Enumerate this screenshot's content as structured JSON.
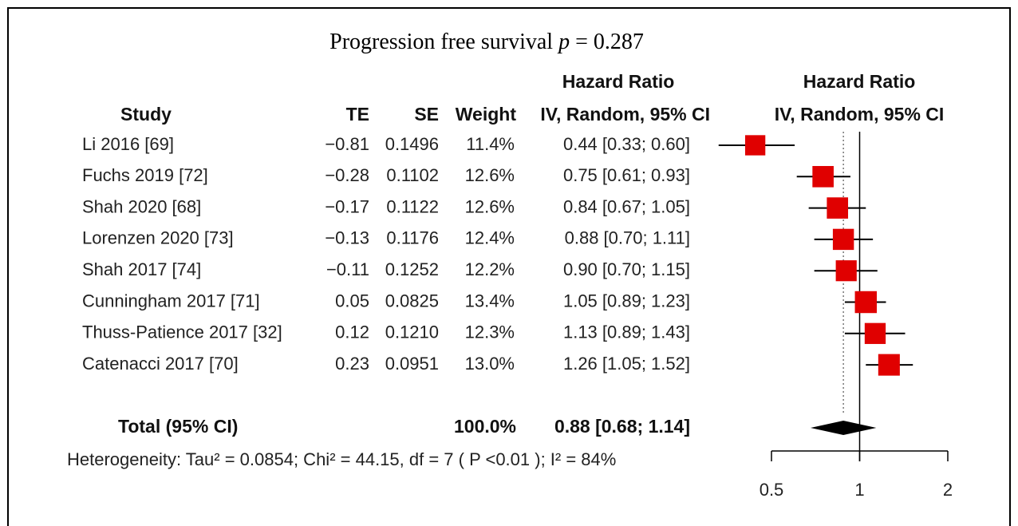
{
  "chart_data": {
    "type": "forest",
    "title": "Progression free survival",
    "title_stat": "p",
    "title_stat_value": "= 0.287",
    "headers": {
      "study": "Study",
      "te": "TE",
      "se": "SE",
      "weight": "Weight",
      "ci_top": "Hazard Ratio",
      "ci_bottom": "IV, Random, 95% CI",
      "plot_top": "Hazard Ratio",
      "plot_bottom": "IV, Random, 95% CI"
    },
    "studies": [
      {
        "name": "Li 2016 [69]",
        "te": "−0.81",
        "se": "0.1496",
        "weight": "11.4%",
        "ci": "0.44 [0.33; 0.60]",
        "w": 11.4,
        "hr": 0.44,
        "lower": 0.33,
        "upper": 0.6
      },
      {
        "name": "Fuchs 2019 [72]",
        "te": "−0.28",
        "se": "0.1102",
        "weight": "12.6%",
        "ci": "0.75 [0.61; 0.93]",
        "w": 12.6,
        "hr": 0.75,
        "lower": 0.61,
        "upper": 0.93
      },
      {
        "name": "Shah 2020 [68]",
        "te": "−0.17",
        "se": "0.1122",
        "weight": "12.6%",
        "ci": "0.84 [0.67; 1.05]",
        "w": 12.6,
        "hr": 0.84,
        "lower": 0.67,
        "upper": 1.05
      },
      {
        "name": "Lorenzen 2020 [73]",
        "te": "−0.13",
        "se": "0.1176",
        "weight": "12.4%",
        "ci": "0.88 [0.70; 1.11]",
        "w": 12.4,
        "hr": 0.88,
        "lower": 0.7,
        "upper": 1.11
      },
      {
        "name": "Shah 2017 [74]",
        "te": "−0.11",
        "se": "0.1252",
        "weight": "12.2%",
        "ci": "0.90 [0.70; 1.15]",
        "w": 12.2,
        "hr": 0.9,
        "lower": 0.7,
        "upper": 1.15
      },
      {
        "name": "Cunningham 2017 [71]",
        "te": "0.05",
        "se": "0.0825",
        "weight": "13.4%",
        "ci": "1.05 [0.89; 1.23]",
        "w": 13.4,
        "hr": 1.05,
        "lower": 0.89,
        "upper": 1.23
      },
      {
        "name": "Thuss-Patience 2017 [32]",
        "te": "0.12",
        "se": "0.1210",
        "weight": "12.3%",
        "ci": "1.13 [0.89; 1.43]",
        "w": 12.3,
        "hr": 1.13,
        "lower": 0.89,
        "upper": 1.43
      },
      {
        "name": "Catenacci 2017 [70]",
        "te": "0.23",
        "se": "0.0951",
        "weight": "13.0%",
        "ci": "1.26 [1.05; 1.52]",
        "w": 13.0,
        "hr": 1.26,
        "lower": 1.05,
        "upper": 1.52
      }
    ],
    "total": {
      "name": "Total (95% CI)",
      "weight": "100.0%",
      "ci": "0.88 [0.68; 1.14]",
      "hr": 0.88,
      "lower": 0.68,
      "upper": 1.14
    },
    "heterogeneity": "Heterogeneity: Tau² = 0.0854; Chi² = 44.15, df = 7 ( P <0.01 ); I² = 84%",
    "log_scale": true,
    "reference": 1,
    "xlim": [
      0.5,
      2
    ],
    "xticks": [
      0.5,
      1,
      2
    ],
    "color": "#e00000"
  }
}
